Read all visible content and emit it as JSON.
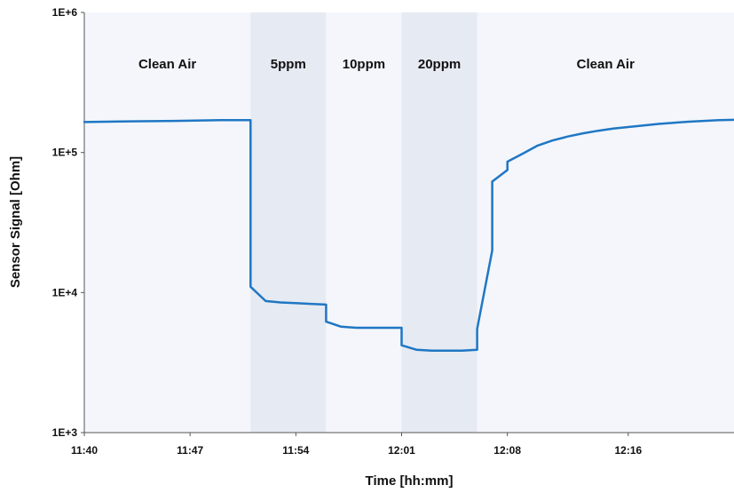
{
  "chart_data": {
    "type": "line",
    "title": "",
    "xlabel": "Time [hh:mm]",
    "ylabel": "Sensor Signal [Ohm]",
    "y_scale": "log",
    "ylim": [
      1000,
      1000000
    ],
    "xlim": [
      "11:40",
      "12:23"
    ],
    "y_ticks": [
      "1E+3",
      "1E+4",
      "1E+5",
      "1E+6"
    ],
    "x_ticks": [
      "11:40",
      "11:47",
      "11:54",
      "12:01",
      "12:08",
      "12:16"
    ],
    "grid": false,
    "legend": "none",
    "colors": {
      "line": "#1f77c4",
      "clean_air_band": "#f4f6fb",
      "gas_band_light": "#f4f6fb",
      "gas_band_dark": "#e6eaf2"
    },
    "regions": [
      {
        "label": "Clean Air",
        "start": "11:40",
        "end": "11:51",
        "shade": "light"
      },
      {
        "label": "5ppm",
        "start": "11:51",
        "end": "11:56",
        "shade": "dark"
      },
      {
        "label": "10ppm",
        "start": "11:56",
        "end": "12:01",
        "shade": "light"
      },
      {
        "label": "20ppm",
        "start": "12:01",
        "end": "12:06",
        "shade": "dark"
      },
      {
        "label": "Clean Air",
        "start": "12:06",
        "end": "12:23",
        "shade": "light"
      }
    ],
    "series": [
      {
        "x": [
          "11:40",
          "11:43",
          "11:46",
          "11:49",
          "11:51",
          "11:51",
          "11:51",
          "11:51",
          "11:52",
          "11:53",
          "11:54",
          "11:55",
          "11:56",
          "11:56",
          "11:57",
          "11:58",
          "11:59",
          "12:00",
          "12:01",
          "12:01",
          "12:02",
          "12:03",
          "12:04",
          "12:05",
          "12:06",
          "12:06",
          "12:07",
          "12:07",
          "12:07",
          "12:08",
          "12:08",
          "12:09",
          "12:10",
          "12:11",
          "12:12",
          "12:13",
          "12:14",
          "12:15",
          "12:16",
          "12:17",
          "12:18",
          "12:19",
          "12:20",
          "12:21",
          "12:22",
          "12:23"
        ],
        "y": [
          165000,
          167000,
          168000,
          170000,
          170000,
          80000,
          30000,
          11000,
          8700,
          8500,
          8400,
          8300,
          8200,
          6200,
          5700,
          5600,
          5600,
          5600,
          5600,
          4200,
          3900,
          3850,
          3850,
          3850,
          3900,
          5500,
          20000,
          45000,
          62000,
          75000,
          86000,
          98000,
          112000,
          122000,
          130000,
          137000,
          143000,
          148000,
          152000,
          156000,
          160000,
          163000,
          166000,
          168000,
          170000,
          171000
        ]
      }
    ]
  }
}
